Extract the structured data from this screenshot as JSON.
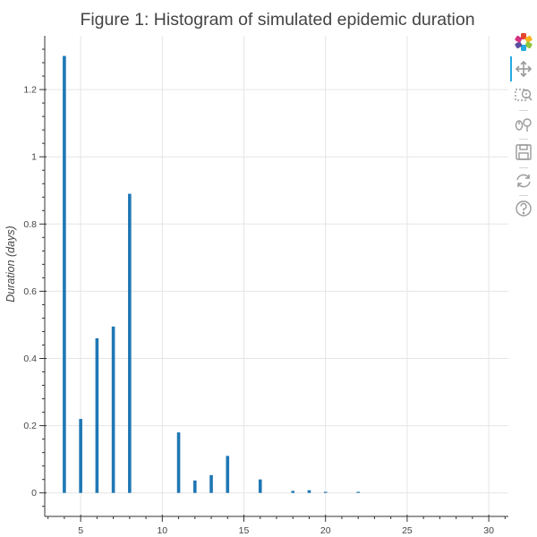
{
  "chart_data": {
    "type": "bar",
    "title": "Figure 1: Histogram of simulated epidemic duration",
    "xlabel": "",
    "ylabel": "Duration (days)",
    "xlim": [
      2.8,
      31.2
    ],
    "ylim": [
      -0.07,
      1.36
    ],
    "x_ticks": [
      5,
      10,
      15,
      20,
      25,
      30
    ],
    "y_ticks": [
      0,
      0.2,
      0.4,
      0.6,
      0.8,
      1,
      1.2
    ],
    "x_tick_labels": [
      "5",
      "10",
      "15",
      "20",
      "25",
      "30"
    ],
    "y_tick_labels": [
      "0",
      "0.2",
      "0.4",
      "0.6",
      "0.8",
      "1",
      "1.2"
    ],
    "grid": true,
    "bar_color": "#1f77b4",
    "x": [
      4,
      5,
      6,
      7,
      8,
      11,
      12,
      13,
      14,
      16,
      18,
      19,
      20,
      22
    ],
    "values": [
      1.3,
      0.22,
      0.46,
      0.495,
      0.89,
      0.18,
      0.037,
      0.053,
      0.11,
      0.04,
      0.006,
      0.008,
      0.003,
      0.002
    ]
  },
  "toolbar": {
    "tools": [
      "bokeh-logo-icon",
      "pan-icon",
      "box-zoom-icon",
      "wheel-zoom-icon",
      "save-icon",
      "reset-icon",
      "help-icon"
    ],
    "active_tool": "pan-icon",
    "accent_color": "#26aae1"
  }
}
